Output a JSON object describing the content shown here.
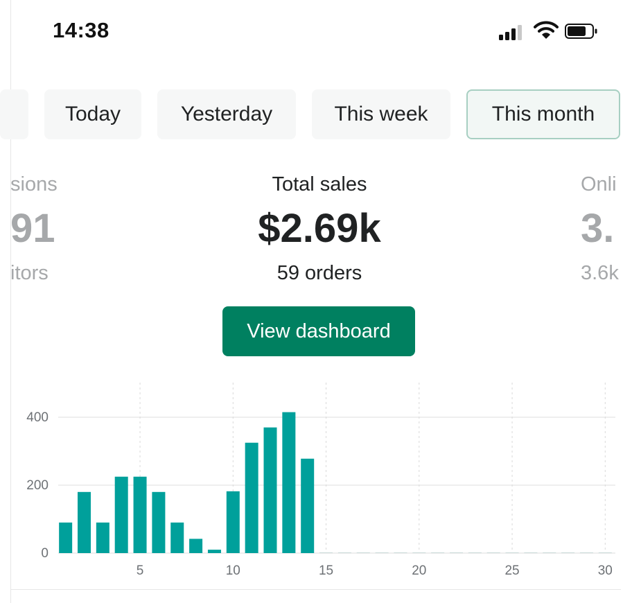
{
  "status_bar": {
    "time": "14:38",
    "signal_icon": "cellular-signal-icon",
    "wifi_icon": "wifi-icon",
    "battery_icon": "battery-icon"
  },
  "tabs": [
    {
      "label": "Today",
      "active": false
    },
    {
      "label": "Yesterday",
      "active": false
    },
    {
      "label": "This week",
      "active": false
    },
    {
      "label": "This month",
      "active": true
    }
  ],
  "metrics": {
    "left": {
      "label": "sions",
      "value": "91",
      "sub": "itors"
    },
    "center": {
      "label": "Total sales",
      "value": "$2.69k",
      "sub": "59 orders"
    },
    "right": {
      "label": "Onli",
      "value": "3.",
      "sub": "3.6k"
    }
  },
  "view_dashboard_label": "View dashboard",
  "colors": {
    "bar": "#00a09b",
    "button": "#008060",
    "active_tab_border": "#a7cfc2",
    "muted_text": "#a6a8aa"
  },
  "chart_data": {
    "type": "bar",
    "x": [
      1,
      2,
      3,
      4,
      5,
      6,
      7,
      8,
      9,
      10,
      11,
      12,
      13,
      14,
      15,
      16,
      17,
      18,
      19,
      20,
      21,
      22,
      23,
      24,
      25,
      26,
      27,
      28,
      29,
      30
    ],
    "values": [
      90,
      180,
      90,
      225,
      225,
      180,
      90,
      42,
      10,
      182,
      325,
      370,
      415,
      278,
      0,
      0,
      0,
      0,
      0,
      0,
      0,
      0,
      0,
      0,
      0,
      0,
      0,
      0,
      0,
      0
    ],
    "x_ticks": [
      "5",
      "10",
      "15",
      "20",
      "25",
      "30"
    ],
    "y_ticks": [
      "0",
      "200",
      "400"
    ],
    "ylim": [
      0,
      450
    ],
    "xlim": [
      0.5,
      30.5
    ],
    "grid": true
  }
}
